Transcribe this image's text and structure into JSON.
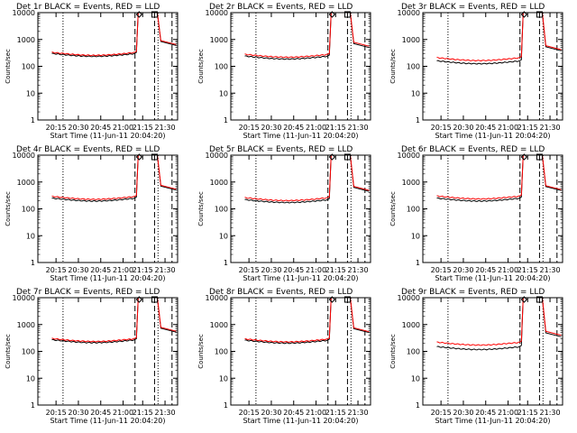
{
  "chart_data": [
    {
      "type": "line",
      "title": "Det 1r BLACK = Events, RED = LLD",
      "xlabel": "Start Time (11-Jun-11 20:04:20)",
      "ylabel": "Counts/sec",
      "yscale": "log",
      "ylim": [
        1,
        10000
      ],
      "yticks": [
        "1",
        "10",
        "100",
        "1000",
        "10000"
      ],
      "xticks": [
        "20:15",
        "20:30",
        "20:45",
        "21:00",
        "21:15",
        "21:30"
      ],
      "markers": [
        "D",
        "S"
      ],
      "series": [
        {
          "color": "#000000",
          "level": 300,
          "jump": 10000,
          "tail": 600
        },
        {
          "color": "#ff0000",
          "level": 330,
          "jump": 10000,
          "tail": 650
        }
      ]
    },
    {
      "type": "line",
      "title": "Det 2r BLACK = Events, RED = LLD",
      "xlabel": "Start Time (11-Jun-11 20:04:20)",
      "ylabel": "Counts/sec",
      "yscale": "log",
      "ylim": [
        1,
        10000
      ],
      "yticks": [
        "1",
        "10",
        "100",
        "1000",
        "10000"
      ],
      "xticks": [
        "20:15",
        "20:30",
        "20:45",
        "21:00",
        "21:15",
        "21:30"
      ],
      "markers": [
        "D",
        "S"
      ],
      "series": [
        {
          "color": "#000000",
          "level": 240,
          "jump": 10000,
          "tail": 500
        },
        {
          "color": "#ff0000",
          "level": 280,
          "jump": 10000,
          "tail": 560
        }
      ]
    },
    {
      "type": "line",
      "title": "Det 3r BLACK = Events, RED = LLD",
      "xlabel": "Start Time (11-Jun-11 20:04:20)",
      "ylabel": "Counts/sec",
      "yscale": "log",
      "ylim": [
        1,
        10000
      ],
      "yticks": [
        "1",
        "10",
        "100",
        "1000",
        "10000"
      ],
      "xticks": [
        "20:15",
        "20:30",
        "20:45",
        "21:00",
        "21:15",
        "21:30"
      ],
      "markers": [
        "D",
        "S"
      ],
      "series": [
        {
          "color": "#000000",
          "level": 160,
          "jump": 10000,
          "tail": 380
        },
        {
          "color": "#ff0000",
          "level": 210,
          "jump": 10000,
          "tail": 420
        }
      ]
    },
    {
      "type": "line",
      "title": "Det 4r BLACK = Events, RED = LLD",
      "xlabel": "Start Time (11-Jun-11 20:04:20)",
      "ylabel": "Counts/sec",
      "yscale": "log",
      "ylim": [
        1,
        10000
      ],
      "yticks": [
        "1",
        "10",
        "100",
        "1000",
        "10000"
      ],
      "xticks": [
        "20:15",
        "20:30",
        "20:45",
        "21:00",
        "21:15",
        "21:30"
      ],
      "markers": [
        "D",
        "S"
      ],
      "series": [
        {
          "color": "#000000",
          "level": 250,
          "jump": 10000,
          "tail": 500
        },
        {
          "color": "#ff0000",
          "level": 290,
          "jump": 10000,
          "tail": 540
        }
      ]
    },
    {
      "type": "line",
      "title": "Det 5r BLACK = Events, RED = LLD",
      "xlabel": "Start Time (11-Jun-11 20:04:20)",
      "ylabel": "Counts/sec",
      "yscale": "log",
      "ylim": [
        1,
        10000
      ],
      "yticks": [
        "1",
        "10",
        "100",
        "1000",
        "10000"
      ],
      "xticks": [
        "20:15",
        "20:30",
        "20:45",
        "21:00",
        "21:15",
        "21:30"
      ],
      "markers": [
        "D",
        "S"
      ],
      "series": [
        {
          "color": "#000000",
          "level": 220,
          "jump": 10000,
          "tail": 450
        },
        {
          "color": "#ff0000",
          "level": 260,
          "jump": 10000,
          "tail": 490
        }
      ]
    },
    {
      "type": "line",
      "title": "Det 6r BLACK = Events, RED = LLD",
      "xlabel": "Start Time (11-Jun-11 20:04:20)",
      "ylabel": "Counts/sec",
      "yscale": "log",
      "ylim": [
        1,
        10000
      ],
      "yticks": [
        "1",
        "10",
        "100",
        "1000",
        "10000"
      ],
      "xticks": [
        "20:15",
        "20:30",
        "20:45",
        "21:00",
        "21:15",
        "21:30"
      ],
      "markers": [
        "D",
        "S"
      ],
      "series": [
        {
          "color": "#000000",
          "level": 250,
          "jump": 10000,
          "tail": 480
        },
        {
          "color": "#ff0000",
          "level": 300,
          "jump": 10000,
          "tail": 520
        }
      ]
    },
    {
      "type": "line",
      "title": "Det 7r BLACK = Events, RED = LLD",
      "xlabel": "Start Time (11-Jun-11 20:04:20)",
      "ylabel": "Counts/sec",
      "yscale": "log",
      "ylim": [
        1,
        10000
      ],
      "yticks": [
        "1",
        "10",
        "100",
        "1000",
        "10000"
      ],
      "xticks": [
        "20:15",
        "20:30",
        "20:45",
        "21:00",
        "21:15",
        "21:30"
      ],
      "markers": [
        "D",
        "S"
      ],
      "series": [
        {
          "color": "#000000",
          "level": 270,
          "jump": 10000,
          "tail": 520
        },
        {
          "color": "#ff0000",
          "level": 300,
          "jump": 10000,
          "tail": 560
        }
      ]
    },
    {
      "type": "line",
      "title": "Det 8r BLACK = Events, RED = LLD",
      "xlabel": "Start Time (11-Jun-11 20:04:20)",
      "ylabel": "Counts/sec",
      "yscale": "log",
      "ylim": [
        1,
        10000
      ],
      "yticks": [
        "1",
        "10",
        "100",
        "1000",
        "10000"
      ],
      "xticks": [
        "20:15",
        "20:30",
        "20:45",
        "21:00",
        "21:15",
        "21:30"
      ],
      "markers": [
        "D",
        "S"
      ],
      "series": [
        {
          "color": "#000000",
          "level": 260,
          "jump": 10000,
          "tail": 500
        },
        {
          "color": "#ff0000",
          "level": 290,
          "jump": 10000,
          "tail": 540
        }
      ]
    },
    {
      "type": "line",
      "title": "Det 9r BLACK = Events, RED = LLD",
      "xlabel": "Start Time (11-Jun-11 20:04:20)",
      "ylabel": "Counts/sec",
      "yscale": "log",
      "ylim": [
        1,
        10000
      ],
      "yticks": [
        "1",
        "10",
        "100",
        "1000",
        "10000"
      ],
      "xticks": [
        "20:15",
        "20:30",
        "20:45",
        "21:00",
        "21:15",
        "21:30"
      ],
      "markers": [
        "D",
        "S"
      ],
      "series": [
        {
          "color": "#000000",
          "level": 150,
          "jump": 10000,
          "tail": 350
        },
        {
          "color": "#ff0000",
          "level": 220,
          "jump": 10000,
          "tail": 400
        }
      ]
    }
  ]
}
